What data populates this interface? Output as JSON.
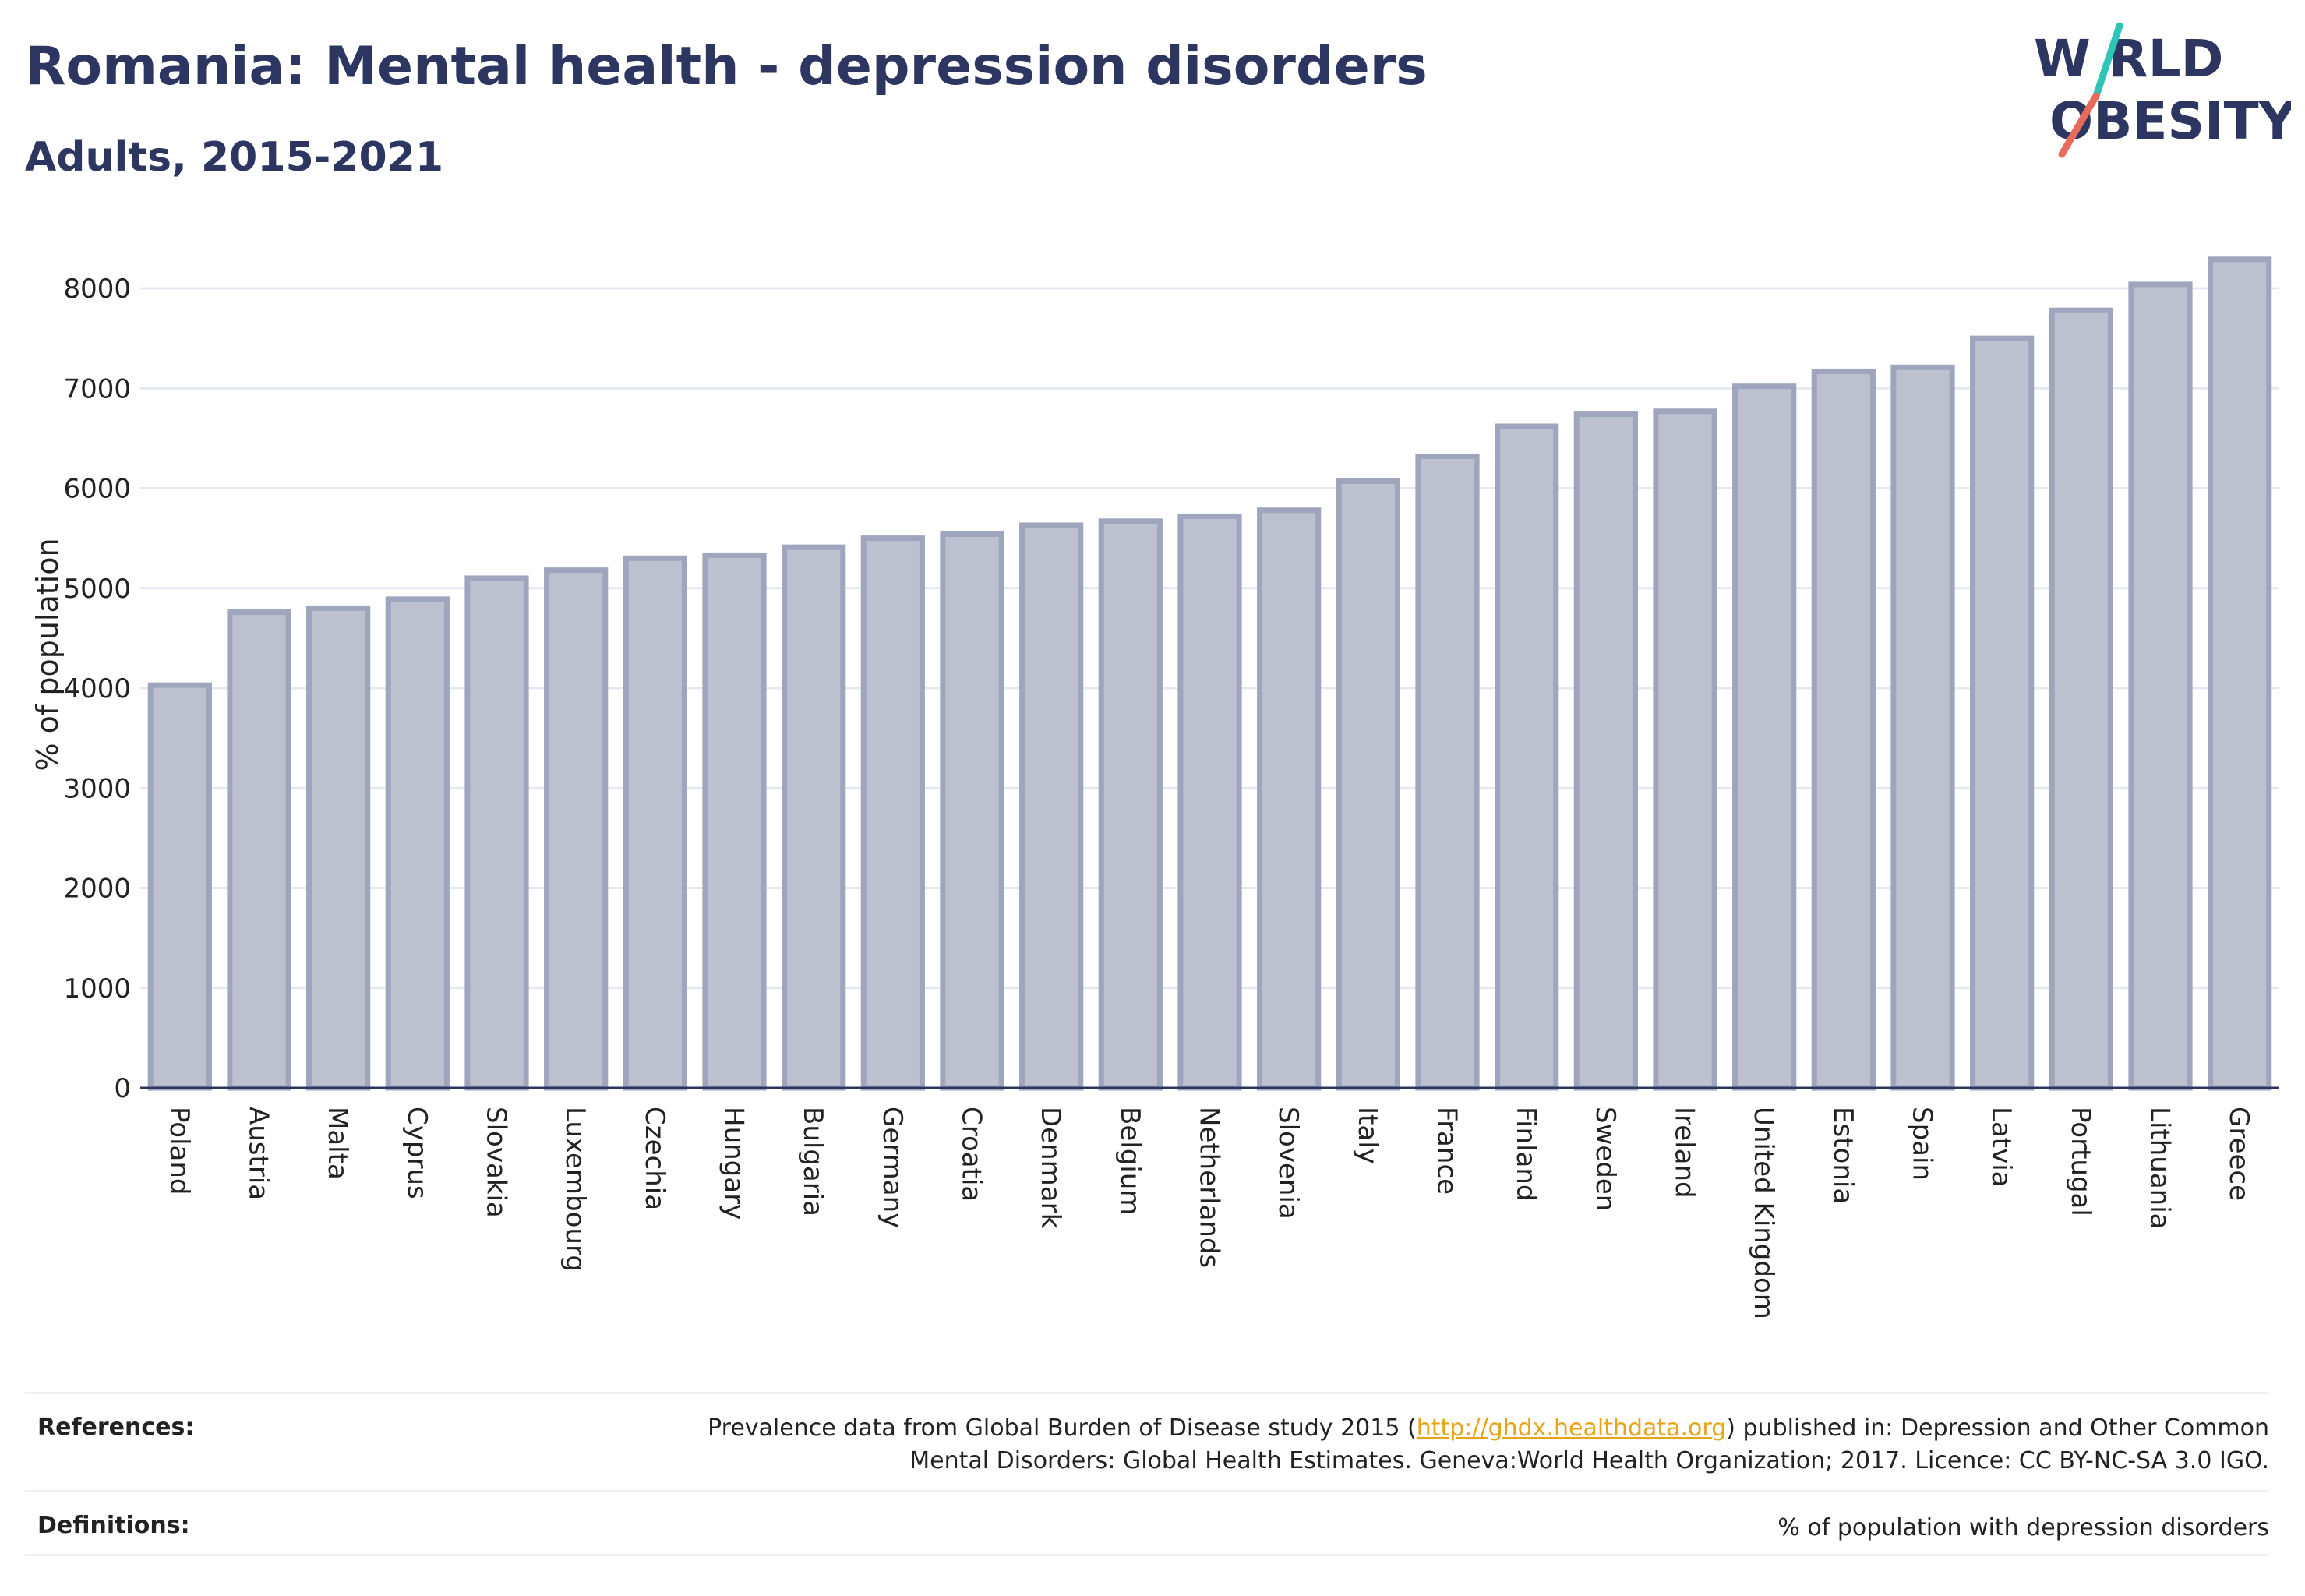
{
  "header": {
    "title": "Romania: Mental health - depression disorders",
    "subtitle": "Adults, 2015-2021"
  },
  "logo": {
    "line1": "W RLD",
    "line2": "OBESITY",
    "colors": {
      "text": "#2d3561",
      "slash_top": "#2ec4b6",
      "slash_bottom": "#e86a5a"
    }
  },
  "chart_data": {
    "type": "bar",
    "ylabel": "% of population",
    "xlabel": "",
    "ylim": [
      0,
      8500
    ],
    "yticks": [
      0,
      1000,
      2000,
      3000,
      4000,
      5000,
      6000,
      7000,
      8000
    ],
    "grid": true,
    "bar_fill": "#bcc0cf",
    "bar_stroke": "#9fa5bd",
    "categories": [
      "Poland",
      "Austria",
      "Malta",
      "Cyprus",
      "Slovakia",
      "Luxembourg",
      "Czechia",
      "Hungary",
      "Bulgaria",
      "Germany",
      "Croatia",
      "Denmark",
      "Belgium",
      "Netherlands",
      "Slovenia",
      "Italy",
      "France",
      "Finland",
      "Sweden",
      "Ireland",
      "United Kingdom",
      "Estonia",
      "Spain",
      "Latvia",
      "Portugal",
      "Lithuania",
      "Greece"
    ],
    "values": [
      4030,
      4760,
      4800,
      4890,
      5100,
      5180,
      5300,
      5330,
      5410,
      5500,
      5540,
      5630,
      5670,
      5720,
      5780,
      6070,
      6320,
      6620,
      6740,
      6770,
      7020,
      7170,
      7210,
      7500,
      7780,
      8040,
      8290
    ]
  },
  "footer": {
    "references_label": "References:",
    "references_pre": "Prevalence data from Global Burden of Disease study 2015 (",
    "references_link": "http://ghdx.healthdata.org",
    "references_post": ") published in: Depression and Other Common",
    "references_line2": "Mental Disorders: Global Health Estimates. Geneva:World Health Organization; 2017. Licence: CC BY-NC-SA 3.0 IGO.",
    "definitions_label": "Definitions:",
    "definitions_text": "% of population with depression disorders"
  }
}
